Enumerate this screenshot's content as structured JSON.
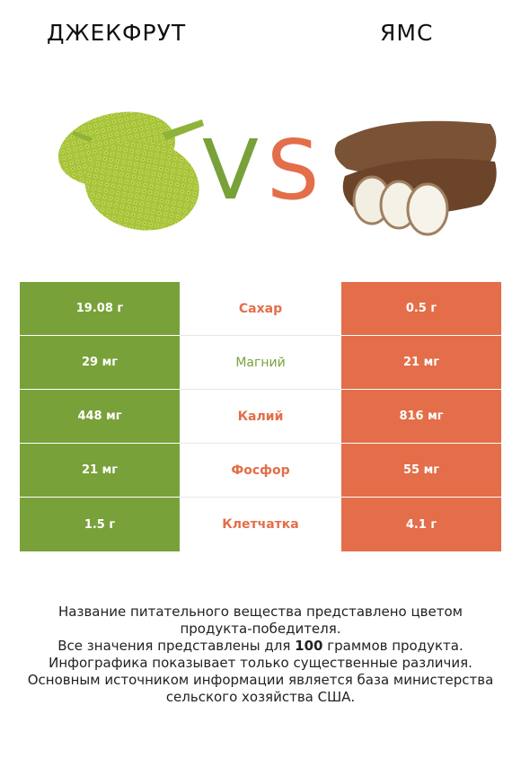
{
  "header": {
    "left_title": "ДЖЕКФРУТ",
    "right_title": "ЯМС",
    "vs_v": "V",
    "vs_s": "S"
  },
  "colors": {
    "winner_left": "#79a13a",
    "winner_right": "#e36e49"
  },
  "images": {
    "left": "jackfruit-image",
    "right": "yam-image"
  },
  "rows": [
    {
      "left": "19.08 г",
      "label": "Сахар",
      "right": "0.5 г",
      "winner": "right"
    },
    {
      "left": "29 мг",
      "label": "Магний",
      "right": "21 мг",
      "winner": "left"
    },
    {
      "left": "448 мг",
      "label": "Калий",
      "right": "816 мг",
      "winner": "right"
    },
    {
      "left": "21 мг",
      "label": "Фосфор",
      "right": "55 мг",
      "winner": "right"
    },
    {
      "left": "1.5 г",
      "label": "Клетчатка",
      "right": "4.1 г",
      "winner": "right"
    }
  ],
  "footer": {
    "line1": "Название питательного вещества представлено цветом",
    "line2": "продукта-победителя.",
    "line3_prefix": "Все значения представлены для ",
    "line3_bold": "100",
    "line3_suffix": " граммов продукта.",
    "line4": "Инфографика показывает только существенные различия.",
    "line5": "Основным источником информации является база министерства",
    "line6": "сельского хозяйства США."
  }
}
